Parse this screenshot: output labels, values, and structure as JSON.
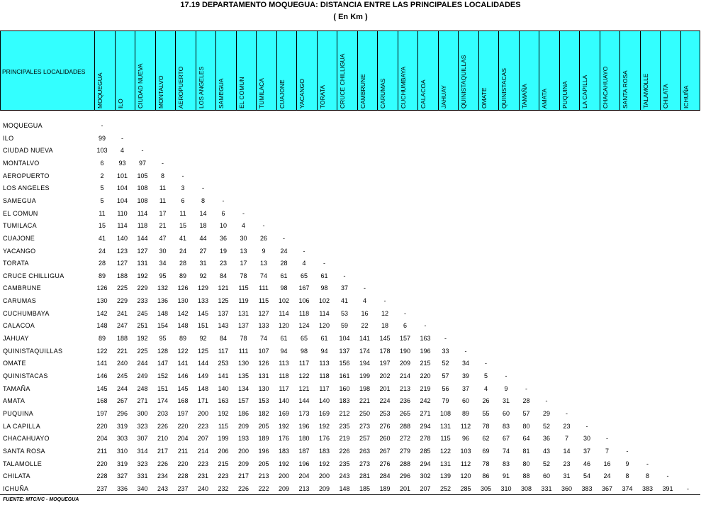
{
  "header": {
    "title": "17.19   DEPARTAMENTO MOQUEGUA: DISTANCIA ENTRE LAS PRINCIPALES LOCALIDADES",
    "subtitle": "( En Km )"
  },
  "table": {
    "corner": "PRINCIPALES LOCALIDADES",
    "columns": [
      "MOQUEGUA",
      "ILO",
      "CIUDAD NUEVA",
      "MONTALVO",
      "AEROPUERTO",
      "LOS ANGELES",
      "SAMEGUA",
      "EL COMUN",
      "TUMILACA",
      "CUAJONE",
      "YACANGO",
      "TORATA",
      "CRUCE CHILLIGUA",
      "CAMBRUNE",
      "CARUMAS",
      "CUCHUMBAYA",
      "CALACOA",
      "JAHUAY",
      "QUINISTAQUILLAS",
      "OMATE",
      "QUINISTACAS",
      "TAMAÑA",
      "AMATA",
      "PUQUINA",
      "LA CAPILLA",
      "CHACAHUAYO",
      "SANTA ROSA",
      "TALAMOLLE",
      "CHILATA",
      "ICHUÑA"
    ],
    "rows": [
      {
        "label": "MOQUEGUA",
        "values": [
          "-"
        ]
      },
      {
        "label": "ILO",
        "values": [
          99,
          "-"
        ]
      },
      {
        "label": "CIUDAD NUEVA",
        "values": [
          103,
          4,
          "-"
        ]
      },
      {
        "label": "MONTALVO",
        "values": [
          6,
          93,
          97,
          "-"
        ]
      },
      {
        "label": "AEROPUERTO",
        "values": [
          2,
          101,
          105,
          8,
          "-"
        ]
      },
      {
        "label": "LOS ANGELES",
        "values": [
          5,
          104,
          108,
          11,
          3,
          "-"
        ]
      },
      {
        "label": "SAMEGUA",
        "values": [
          5,
          104,
          108,
          11,
          6,
          8,
          "-"
        ]
      },
      {
        "label": "EL COMUN",
        "values": [
          11,
          110,
          114,
          17,
          11,
          14,
          6,
          "-"
        ]
      },
      {
        "label": "TUMILACA",
        "values": [
          15,
          114,
          118,
          21,
          15,
          18,
          10,
          4,
          "-"
        ]
      },
      {
        "label": "CUAJONE",
        "values": [
          41,
          140,
          144,
          47,
          41,
          44,
          36,
          30,
          26,
          "-"
        ]
      },
      {
        "label": "YACANGO",
        "values": [
          24,
          123,
          127,
          30,
          24,
          27,
          19,
          13,
          9,
          24,
          "-"
        ]
      },
      {
        "label": "TORATA",
        "values": [
          28,
          127,
          131,
          34,
          28,
          31,
          23,
          17,
          13,
          28,
          4,
          "-"
        ]
      },
      {
        "label": "CRUCE CHILLIGUA",
        "values": [
          89,
          188,
          192,
          95,
          89,
          92,
          84,
          78,
          74,
          61,
          65,
          61,
          "-"
        ]
      },
      {
        "label": "CAMBRUNE",
        "values": [
          126,
          225,
          229,
          132,
          126,
          129,
          121,
          115,
          111,
          98,
          167,
          98,
          37,
          "-"
        ]
      },
      {
        "label": "CARUMAS",
        "values": [
          130,
          229,
          233,
          136,
          130,
          133,
          125,
          119,
          115,
          102,
          106,
          102,
          41,
          4,
          "-"
        ]
      },
      {
        "label": "CUCHUMBAYA",
        "values": [
          142,
          241,
          245,
          148,
          142,
          145,
          137,
          131,
          127,
          114,
          118,
          114,
          53,
          16,
          12,
          "-"
        ]
      },
      {
        "label": "CALACOA",
        "values": [
          148,
          247,
          251,
          154,
          148,
          151,
          143,
          137,
          133,
          120,
          124,
          120,
          59,
          22,
          18,
          6,
          "-"
        ]
      },
      {
        "label": "JAHUAY",
        "values": [
          89,
          188,
          192,
          95,
          89,
          92,
          84,
          78,
          74,
          61,
          65,
          61,
          104,
          141,
          145,
          157,
          163,
          "-"
        ]
      },
      {
        "label": "QUINISTAQUILLAS",
        "values": [
          122,
          221,
          225,
          128,
          122,
          125,
          117,
          111,
          107,
          94,
          98,
          94,
          137,
          174,
          178,
          190,
          196,
          33,
          "-"
        ]
      },
      {
        "label": "OMATE",
        "values": [
          141,
          240,
          244,
          147,
          141,
          144,
          253,
          130,
          126,
          113,
          117,
          113,
          156,
          194,
          197,
          209,
          215,
          52,
          34,
          "-"
        ]
      },
      {
        "label": "QUINISTACAS",
        "values": [
          146,
          245,
          249,
          152,
          146,
          149,
          141,
          135,
          131,
          118,
          122,
          118,
          161,
          199,
          202,
          214,
          220,
          57,
          39,
          5,
          "-"
        ]
      },
      {
        "label": "TAMAÑA",
        "values": [
          145,
          244,
          248,
          151,
          145,
          148,
          140,
          134,
          130,
          117,
          121,
          117,
          160,
          198,
          201,
          213,
          219,
          56,
          37,
          4,
          9,
          "-"
        ]
      },
      {
        "label": "AMATA",
        "values": [
          168,
          267,
          271,
          174,
          168,
          171,
          163,
          157,
          153,
          140,
          144,
          140,
          183,
          221,
          224,
          236,
          242,
          79,
          60,
          26,
          31,
          28,
          "-"
        ]
      },
      {
        "label": "PUQUINA",
        "values": [
          197,
          296,
          300,
          203,
          197,
          200,
          192,
          186,
          182,
          169,
          173,
          169,
          212,
          250,
          253,
          265,
          271,
          108,
          89,
          55,
          60,
          57,
          29,
          "-"
        ]
      },
      {
        "label": "LA CAPILLA",
        "values": [
          220,
          319,
          323,
          226,
          220,
          223,
          115,
          209,
          205,
          192,
          196,
          192,
          235,
          273,
          276,
          288,
          294,
          131,
          112,
          78,
          83,
          80,
          52,
          23,
          "-"
        ]
      },
      {
        "label": "CHACAHUAYO",
        "values": [
          204,
          303,
          307,
          210,
          204,
          207,
          199,
          193,
          189,
          176,
          180,
          176,
          219,
          257,
          260,
          272,
          278,
          115,
          96,
          62,
          67,
          64,
          36,
          7,
          30,
          "-"
        ]
      },
      {
        "label": "SANTA ROSA",
        "values": [
          211,
          310,
          314,
          217,
          211,
          214,
          206,
          200,
          196,
          183,
          187,
          183,
          226,
          263,
          267,
          279,
          285,
          122,
          103,
          69,
          74,
          81,
          43,
          14,
          37,
          7,
          "-"
        ]
      },
      {
        "label": "TALAMOLLE",
        "values": [
          220,
          319,
          323,
          226,
          220,
          223,
          215,
          209,
          205,
          192,
          196,
          192,
          235,
          273,
          276,
          288,
          294,
          131,
          112,
          78,
          83,
          80,
          52,
          23,
          46,
          16,
          9,
          "-"
        ]
      },
      {
        "label": "CHILATA",
        "values": [
          228,
          327,
          331,
          234,
          228,
          231,
          223,
          217,
          213,
          200,
          204,
          200,
          243,
          281,
          284,
          296,
          302,
          139,
          120,
          86,
          91,
          88,
          60,
          31,
          54,
          24,
          8,
          8,
          "-"
        ]
      },
      {
        "label": "ICHUÑA",
        "values": [
          237,
          336,
          340,
          243,
          237,
          240,
          232,
          226,
          222,
          209,
          213,
          209,
          148,
          185,
          189,
          201,
          207,
          252,
          285,
          305,
          310,
          308,
          331,
          360,
          383,
          367,
          374,
          383,
          391,
          "-"
        ]
      }
    ]
  },
  "footer": "FUENTE: MTC/VC - MOQUEGUA"
}
